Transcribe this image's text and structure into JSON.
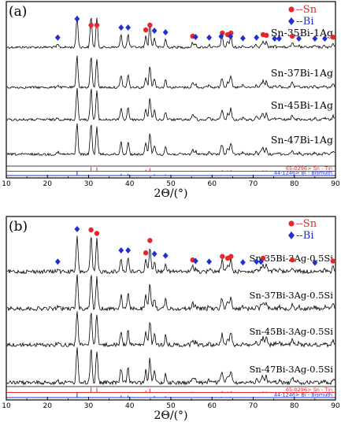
{
  "chart_data": [
    {
      "type": "line",
      "panel_label": "(a)",
      "xlabel": "2Θ/(°)",
      "ylabel": "",
      "xlim": [
        10,
        90
      ],
      "x_ticks": [
        "10",
        "20",
        "30",
        "40",
        "50",
        "60",
        "70",
        "80",
        "90"
      ],
      "series": [
        {
          "name": "Sn-35Bi-1Ag"
        },
        {
          "name": "Sn-37Bi-1Ag"
        },
        {
          "name": "Sn-45Bi-1Ag"
        },
        {
          "name": "Sn-47Bi-1Ag"
        }
      ],
      "legend": [
        {
          "symbol": "circle",
          "color": "#e8262a",
          "label": "--Sn"
        },
        {
          "symbol": "diamond",
          "color": "#1f2fd0",
          "label": "--Bi"
        }
      ],
      "references": [
        {
          "label": "65-0296> Sn - Tin",
          "color": "#e8262a",
          "peaks": [
            30.6,
            32.0,
            43.9,
            44.9,
            55.3,
            62.5,
            63.8,
            64.6,
            72.4,
            73.2,
            79.5,
            89.4
          ],
          "intensities": [
            1.0,
            0.9,
            0.35,
            0.7,
            0.15,
            0.25,
            0.2,
            0.25,
            0.2,
            0.18,
            0.15,
            0.12
          ]
        },
        {
          "label": "44-1246> Bi - Bismuth",
          "color": "#1f2fd0",
          "peaks": [
            22.5,
            27.2,
            37.9,
            39.6,
            46.0,
            48.7,
            56.0,
            59.3,
            62.2,
            64.5,
            67.5,
            70.8,
            71.9,
            75.2,
            76.3,
            81.1,
            85.0,
            87.4
          ],
          "intensities": [
            0.08,
            1.0,
            0.4,
            0.4,
            0.3,
            0.25,
            0.1,
            0.08,
            0.12,
            0.12,
            0.06,
            0.08,
            0.08,
            0.05,
            0.05,
            0.05,
            0.05,
            0.05
          ]
        }
      ],
      "sn_markers": [
        30.6,
        32.0,
        43.9,
        44.9,
        55.3,
        62.5,
        63.8,
        64.6,
        72.4,
        73.2,
        79.5,
        89.4
      ],
      "bi_markers": [
        22.5,
        27.2,
        37.9,
        39.6,
        46.0,
        48.7,
        56.0,
        59.3,
        62.2,
        64.5,
        67.5,
        70.8,
        75.2,
        76.3,
        81.1,
        85.0,
        87.4
      ],
      "grid": false
    },
    {
      "type": "line",
      "panel_label": "(b)",
      "xlabel": "2Θ/(°)",
      "ylabel": "",
      "xlim": [
        10,
        90
      ],
      "x_ticks": [
        "10",
        "20",
        "30",
        "40",
        "50",
        "60",
        "70",
        "80",
        "90"
      ],
      "series": [
        {
          "name": "Sn-35Bi-3Ag-0.5Si"
        },
        {
          "name": "Sn-37Bi-3Ag-0.5Si"
        },
        {
          "name": "Sn-45Bi-3Ag-0.5Si"
        },
        {
          "name": "Sn-47Bi-3Ag-0.5Si"
        }
      ],
      "legend": [
        {
          "symbol": "circle",
          "color": "#e8262a",
          "label": "--Sn"
        },
        {
          "symbol": "diamond",
          "color": "#1f2fd0",
          "label": "--Bi"
        }
      ],
      "references": [
        {
          "label": "65-0296> Sn - Tin",
          "color": "#e8262a",
          "peaks": [
            30.6,
            32.0,
            43.9,
            44.9,
            55.3,
            62.5,
            63.8,
            64.6,
            72.4,
            73.2,
            79.5,
            89.4
          ],
          "intensities": [
            1.0,
            0.9,
            0.35,
            0.7,
            0.15,
            0.25,
            0.2,
            0.25,
            0.2,
            0.18,
            0.15,
            0.12
          ]
        },
        {
          "label": "44-1246> Bi - Bismuth",
          "color": "#1f2fd0",
          "peaks": [
            22.5,
            27.2,
            37.9,
            39.6,
            46.0,
            48.7,
            56.0,
            59.3,
            62.2,
            64.5,
            67.5,
            70.8,
            71.9,
            75.2,
            76.3,
            81.1,
            85.0,
            87.4
          ],
          "intensities": [
            0.08,
            1.0,
            0.4,
            0.4,
            0.3,
            0.25,
            0.1,
            0.08,
            0.12,
            0.12,
            0.06,
            0.08,
            0.08,
            0.05,
            0.05,
            0.05,
            0.05,
            0.05
          ]
        }
      ],
      "sn_markers": [
        30.6,
        32.0,
        43.9,
        44.9,
        55.3,
        62.5,
        63.8,
        64.6,
        72.4,
        79.5,
        89.4
      ],
      "bi_markers": [
        22.5,
        27.2,
        37.9,
        39.6,
        46.0,
        48.7,
        56.0,
        59.3,
        67.5,
        70.8,
        71.9,
        85.0
      ],
      "grid": false
    }
  ]
}
